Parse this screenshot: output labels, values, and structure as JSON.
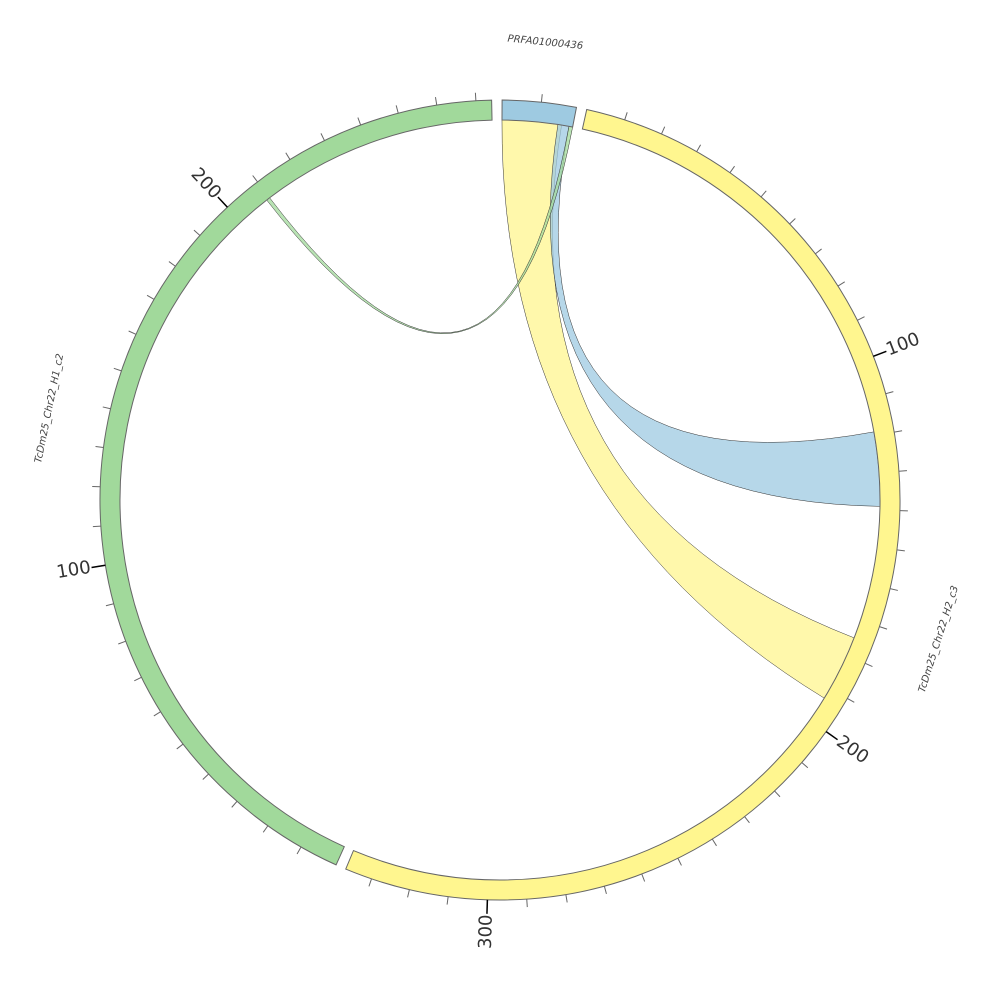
{
  "chart_data": {
    "type": "chord",
    "segments": [
      {
        "name": "PRFA01000436",
        "length": 19,
        "color": "#9ecae1",
        "ticks": [],
        "minor_tick_step": 10
      },
      {
        "name": "TcDm25_Chr22_H2_c3",
        "length": 337,
        "color": "#fff68f",
        "ticks": [
          100,
          200,
          300
        ],
        "minor_tick_step": 10
      },
      {
        "name": "TcDm25_Chr22_H1_c2",
        "length": 274,
        "color": "#a1d99b",
        "ticks": [
          100,
          200
        ],
        "minor_tick_step": 10
      }
    ],
    "links": [
      {
        "source": 0,
        "source_start": 0,
        "source_end": 16,
        "target": 1,
        "target_start": 175,
        "target_end": 193,
        "color": "#fff68f"
      },
      {
        "source": 0,
        "source_start": 15,
        "source_end": 18,
        "target": 1,
        "target_start": 119,
        "target_end": 139,
        "color": "#9ecae1"
      },
      {
        "source": 0,
        "source_start": 18,
        "source_end": 19,
        "target": 2,
        "target_start": 209,
        "target_end": 210,
        "color": "#a1d99b"
      }
    ]
  }
}
